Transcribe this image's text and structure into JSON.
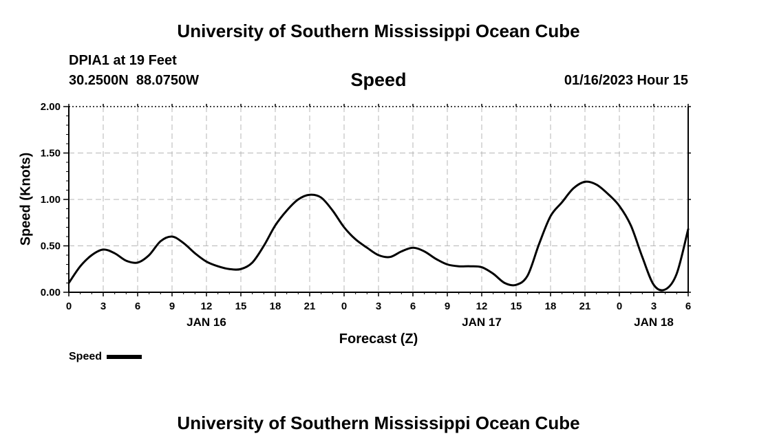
{
  "header": {
    "title": "University of Southern Mississippi Ocean Cube",
    "station": "DPIA1 at 19 Feet",
    "coords": "30.2500N  88.0750W",
    "timestamp": "01/16/2023 Hour 15"
  },
  "footer": {
    "title": "University of Southern Mississippi Ocean Cube"
  },
  "chart_data": {
    "type": "line",
    "title": "Speed",
    "xlabel": "Forecast (Z)",
    "ylabel": "Speed (Knots)",
    "ylim": [
      0,
      2
    ],
    "yticks": [
      "0.00",
      "0.50",
      "1.00",
      "1.50",
      "2.00"
    ],
    "x_tick_labels": [
      "0",
      "3",
      "6",
      "9",
      "12",
      "15",
      "18",
      "21",
      "0",
      "3",
      "6",
      "9",
      "12",
      "15",
      "18",
      "21",
      "0",
      "3",
      "6"
    ],
    "x_hours": [
      0,
      3,
      6,
      9,
      12,
      15,
      18,
      21,
      24,
      27,
      30,
      33,
      36,
      39,
      42,
      45,
      48,
      51,
      54
    ],
    "date_labels": [
      {
        "label": "JAN 16",
        "hour": 12
      },
      {
        "label": "JAN 17",
        "hour": 36
      },
      {
        "label": "JAN 18",
        "hour": 51
      }
    ],
    "grid": true,
    "legend_position": "bottom-left",
    "series": [
      {
        "name": "Speed",
        "color": "#000000",
        "x": [
          0,
          1,
          2,
          3,
          4,
          5,
          6,
          7,
          8,
          9,
          10,
          11,
          12,
          13,
          14,
          15,
          16,
          17,
          18,
          19,
          20,
          21,
          22,
          23,
          24,
          25,
          26,
          27,
          28,
          29,
          30,
          31,
          32,
          33,
          34,
          35,
          36,
          37,
          38,
          39,
          40,
          41,
          42,
          43,
          44,
          45,
          46,
          47,
          48,
          49,
          50,
          51,
          52,
          53,
          54
        ],
        "values": [
          0.1,
          0.28,
          0.4,
          0.46,
          0.42,
          0.34,
          0.32,
          0.4,
          0.55,
          0.6,
          0.53,
          0.42,
          0.33,
          0.28,
          0.25,
          0.25,
          0.32,
          0.5,
          0.72,
          0.88,
          1.0,
          1.05,
          1.02,
          0.88,
          0.7,
          0.57,
          0.48,
          0.4,
          0.38,
          0.44,
          0.48,
          0.44,
          0.36,
          0.3,
          0.28,
          0.28,
          0.27,
          0.2,
          0.1,
          0.08,
          0.18,
          0.52,
          0.82,
          0.97,
          1.12,
          1.19,
          1.16,
          1.06,
          0.93,
          0.72,
          0.38,
          0.08,
          0.03,
          0.2,
          0.68
        ]
      }
    ]
  }
}
